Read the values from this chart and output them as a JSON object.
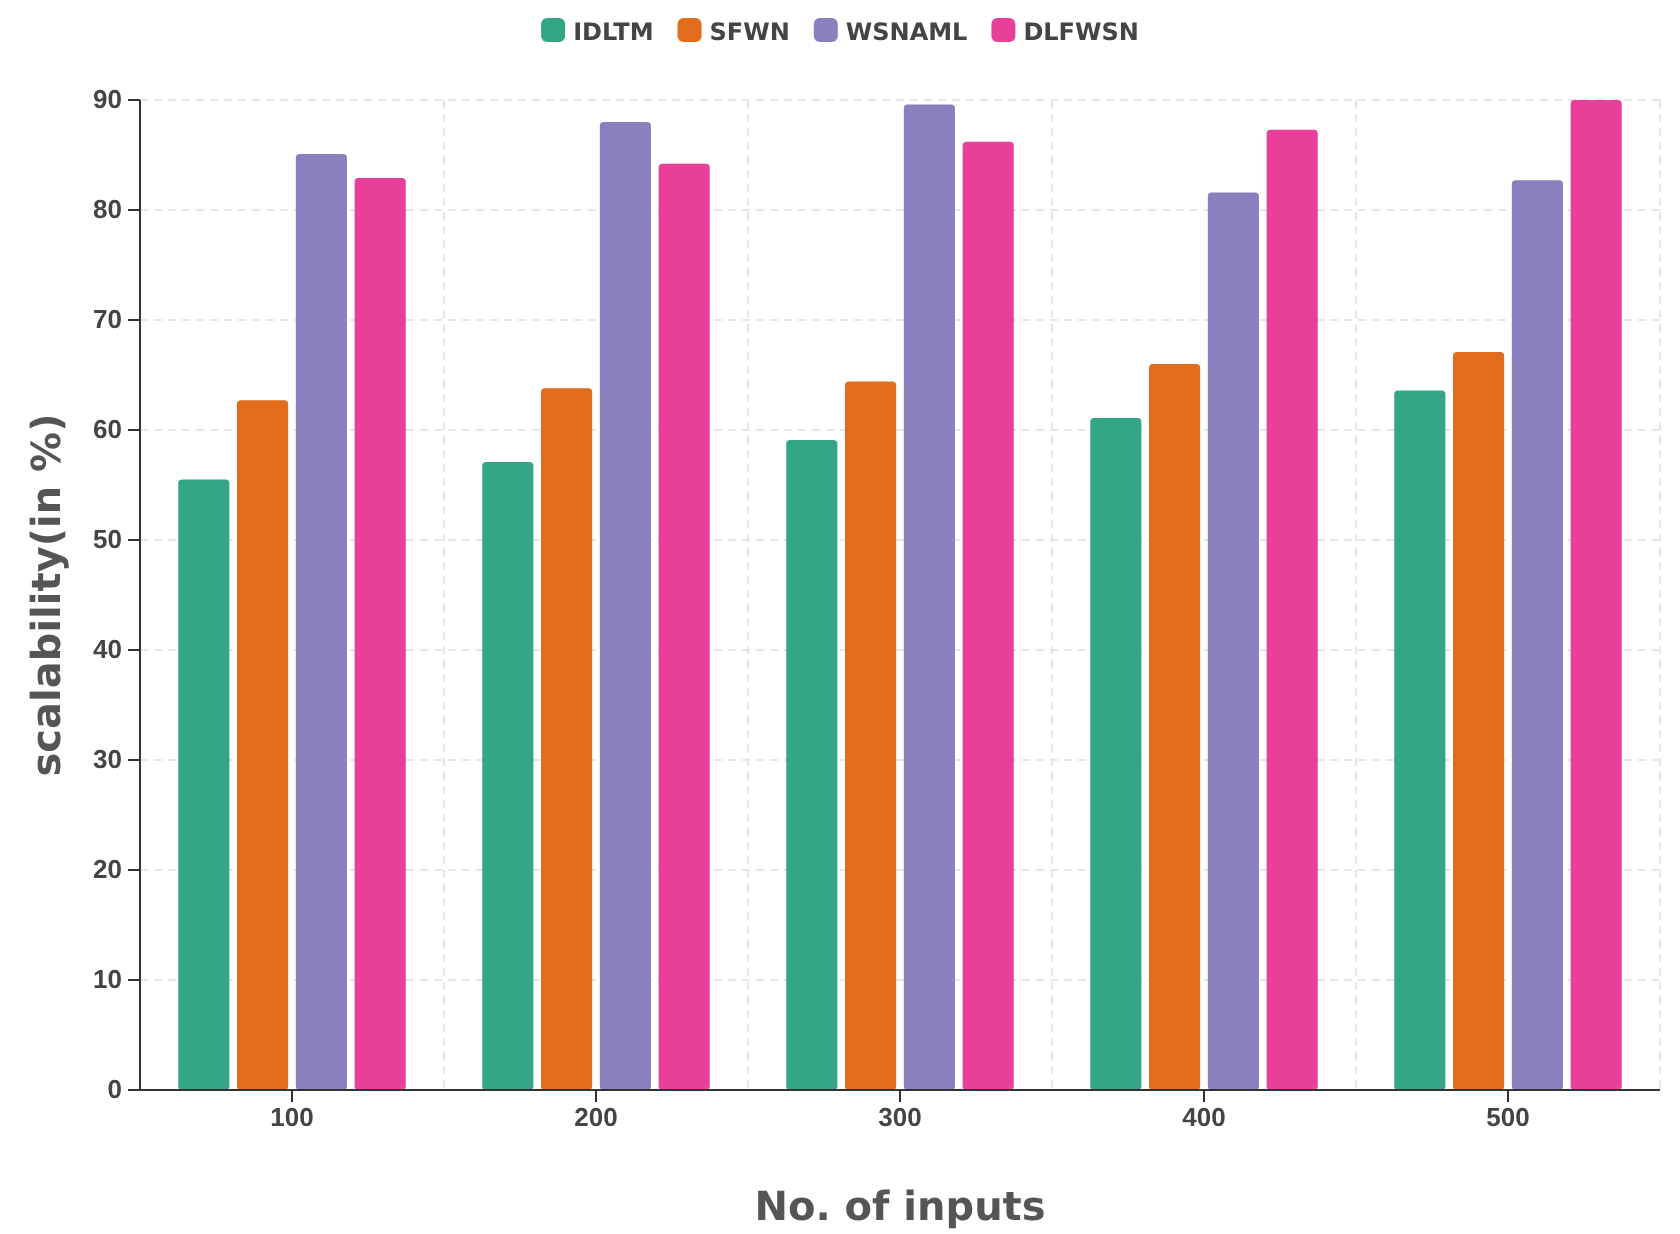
{
  "chart_data": {
    "type": "bar",
    "xlabel": "No. of inputs",
    "ylabel": "scalability(in %)",
    "categories": [
      "100",
      "200",
      "300",
      "400",
      "500"
    ],
    "series": [
      {
        "name": "IDLTM",
        "color": "#33a783",
        "values": [
          55.5,
          57.1,
          59.1,
          61.1,
          63.6
        ]
      },
      {
        "name": "SFWN",
        "color": "#e06c1c",
        "values": [
          62.7,
          63.8,
          64.4,
          66.0,
          67.1
        ]
      },
      {
        "name": "WSNAML",
        "color": "#8a80be",
        "values": [
          85.1,
          88.0,
          89.6,
          81.6,
          82.7
        ]
      },
      {
        "name": "DLFWSN",
        "color": "#e8409a",
        "values": [
          82.9,
          84.2,
          86.2,
          87.3,
          90
        ]
      }
    ],
    "ylim": [
      0,
      90
    ],
    "yticks": [
      0,
      10,
      20,
      30,
      40,
      50,
      60,
      70,
      80,
      90
    ],
    "grid": true,
    "legend": "top"
  }
}
